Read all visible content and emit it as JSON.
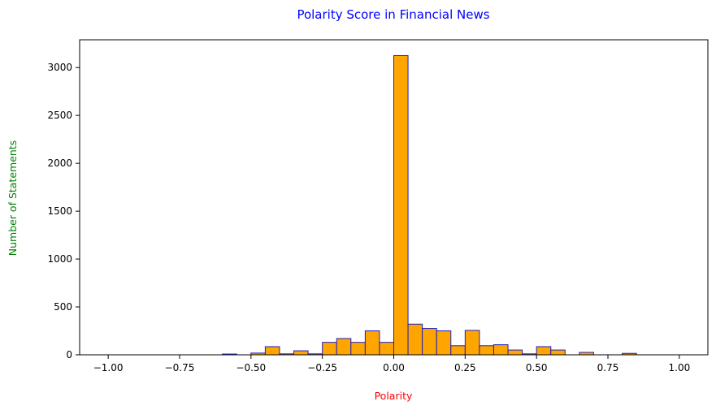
{
  "colors": {
    "bar_fill": "#ffa500",
    "bar_edge": "#1f1fbf",
    "title": "#0000ff",
    "xlabel": "#ff0000",
    "ylabel": "#008000",
    "axis": "#000000"
  },
  "chart_data": {
    "type": "bar",
    "title": "Polarity Score in Financial News",
    "xlabel": "Polarity",
    "ylabel": "Number of Statements",
    "xlim": [
      -1.1,
      1.1
    ],
    "ylim": [
      0,
      3290
    ],
    "x_ticks": [
      -1.0,
      -0.75,
      -0.5,
      -0.25,
      0.0,
      0.25,
      0.5,
      0.75,
      1.0
    ],
    "x_tick_labels": [
      "−1.00",
      "−0.75",
      "−0.50",
      "−0.25",
      "0.00",
      "0.25",
      "0.50",
      "0.75",
      "1.00"
    ],
    "y_ticks": [
      0,
      500,
      1000,
      1500,
      2000,
      2500,
      3000
    ],
    "y_tick_labels": [
      "0",
      "500",
      "1000",
      "1500",
      "2000",
      "2500",
      "3000"
    ],
    "grid": false,
    "legend": "none",
    "bin_edges": [
      -1.0,
      -0.95,
      -0.9,
      -0.85,
      -0.8,
      -0.75,
      -0.7,
      -0.65,
      -0.6,
      -0.55,
      -0.5,
      -0.45,
      -0.4,
      -0.35,
      -0.3,
      -0.25,
      -0.2,
      -0.15,
      -0.1,
      -0.05,
      0.0,
      0.05,
      0.1,
      0.15,
      0.2,
      0.25,
      0.3,
      0.35,
      0.4,
      0.45,
      0.5,
      0.55,
      0.6,
      0.65,
      0.7,
      0.75,
      0.8,
      0.85,
      0.9,
      0.95,
      1.0
    ],
    "values": [
      0,
      0,
      0,
      0,
      0,
      0,
      0,
      0,
      8,
      0,
      18,
      85,
      10,
      42,
      10,
      130,
      170,
      130,
      250,
      130,
      3125,
      320,
      275,
      250,
      95,
      255,
      95,
      105,
      50,
      10,
      85,
      50,
      0,
      25,
      0,
      0,
      15,
      0,
      0,
      0
    ]
  }
}
